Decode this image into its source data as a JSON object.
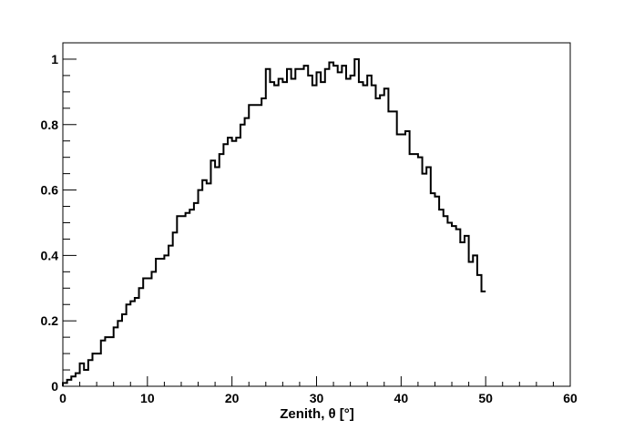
{
  "chart_data": {
    "type": "line",
    "style": "step-histogram",
    "title": "",
    "xlabel": "Zenith, θ [°]",
    "ylabel": "",
    "xlim": [
      0,
      60
    ],
    "ylim": [
      0,
      1.05
    ],
    "grid": false,
    "legend": "none",
    "x_ticks": [
      0,
      10,
      20,
      30,
      40,
      50,
      60
    ],
    "x_tick_labels": [
      "0",
      "10",
      "20",
      "30",
      "40",
      "50",
      "60"
    ],
    "y_ticks": [
      0,
      0.2,
      0.4,
      0.6,
      0.8,
      1
    ],
    "y_tick_labels": [
      "0",
      "0.2",
      "0.4",
      "0.6",
      "0.8",
      "1"
    ],
    "bin_width": 0.5,
    "line_color": "#000000",
    "values": [
      0.01,
      0.02,
      0.03,
      0.04,
      0.07,
      0.05,
      0.08,
      0.1,
      0.1,
      0.14,
      0.15,
      0.15,
      0.18,
      0.2,
      0.22,
      0.25,
      0.26,
      0.27,
      0.3,
      0.33,
      0.33,
      0.35,
      0.39,
      0.39,
      0.4,
      0.43,
      0.47,
      0.52,
      0.52,
      0.53,
      0.54,
      0.56,
      0.6,
      0.63,
      0.62,
      0.69,
      0.67,
      0.71,
      0.74,
      0.76,
      0.75,
      0.76,
      0.8,
      0.82,
      0.86,
      0.86,
      0.86,
      0.88,
      0.97,
      0.93,
      0.92,
      0.94,
      0.93,
      0.97,
      0.94,
      0.97,
      0.97,
      0.98,
      0.95,
      0.92,
      0.96,
      0.93,
      0.97,
      0.99,
      0.98,
      0.96,
      0.98,
      0.94,
      0.95,
      1.0,
      0.93,
      0.92,
      0.95,
      0.92,
      0.88,
      0.89,
      0.91,
      0.84,
      0.84,
      0.77,
      0.77,
      0.78,
      0.71,
      0.71,
      0.7,
      0.65,
      0.67,
      0.59,
      0.58,
      0.54,
      0.52,
      0.5,
      0.49,
      0.48,
      0.44,
      0.46,
      0.38,
      0.4,
      0.34,
      0.29
    ]
  }
}
